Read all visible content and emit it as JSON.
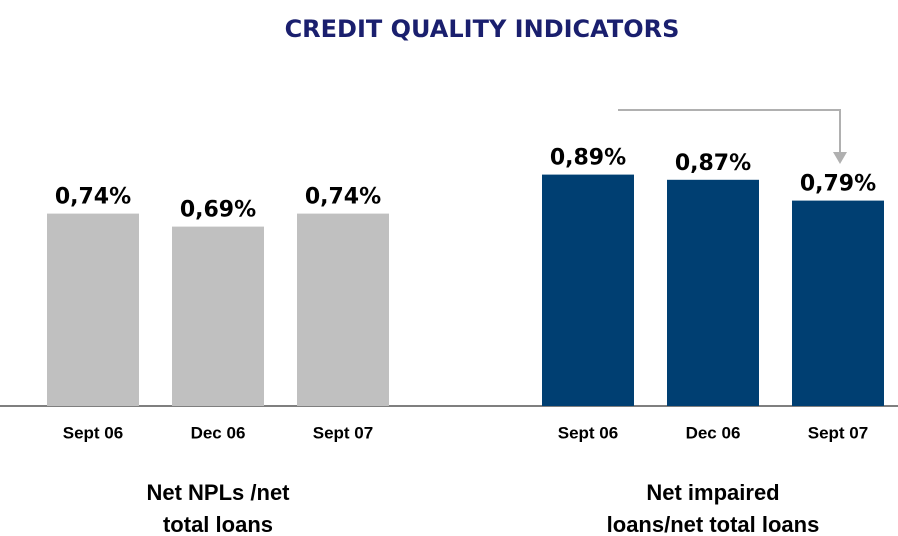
{
  "title": "CREDIT QUALITY INDICATORS",
  "chart_data": [
    {
      "type": "bar",
      "categories": [
        "Sept 06",
        "Dec 06",
        "Sept 07"
      ],
      "values": [
        0.74,
        0.69,
        0.74
      ],
      "value_labels": [
        "0,74%",
        "0,69%",
        "0,74%"
      ],
      "color": "#c0c0c0",
      "ylim": [
        0,
        1.5
      ],
      "xlabel": [
        "Net NPLs /net",
        "total loans"
      ]
    },
    {
      "type": "bar",
      "categories": [
        "Sept 06",
        "Dec 06",
        "Sept 07"
      ],
      "values": [
        0.89,
        0.87,
        0.79
      ],
      "value_labels": [
        "0,89%",
        "0,87%",
        "0,79%"
      ],
      "color": "#003f72",
      "ylim": [
        0,
        1.5
      ],
      "xlabel": [
        "Net impaired",
        "loans/net total loans"
      ]
    }
  ]
}
